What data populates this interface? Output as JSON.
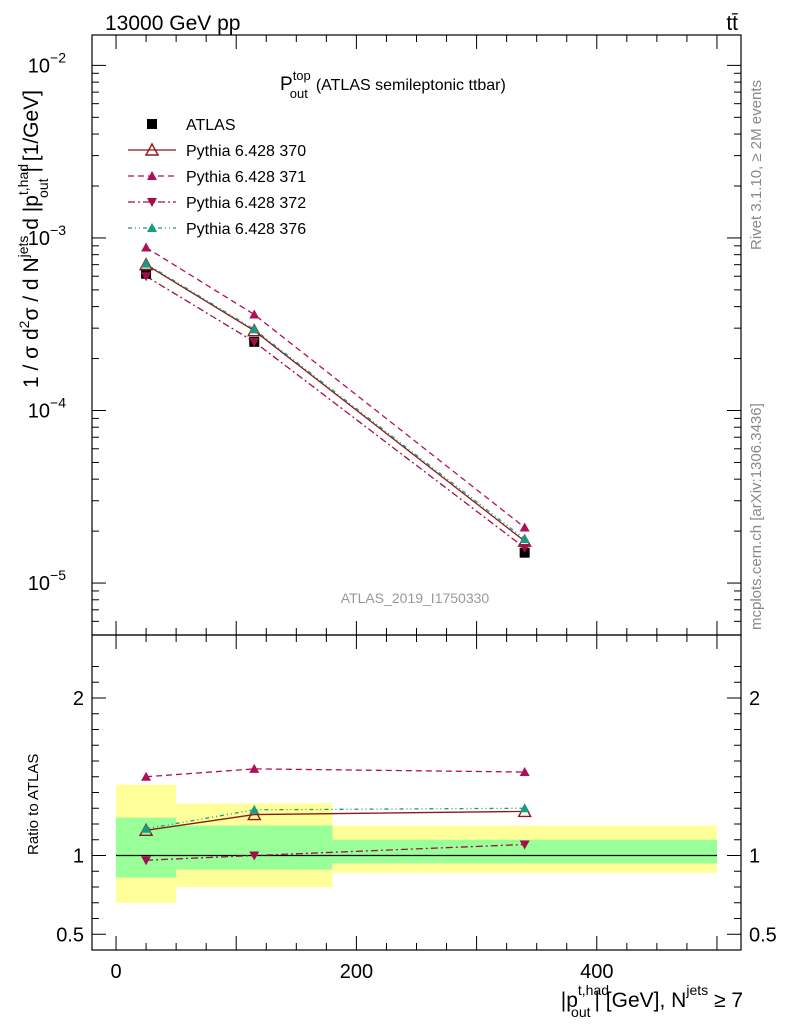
{
  "header": {
    "energy_label": "13000 GeV pp",
    "process_label": "tt̄"
  },
  "sidebar": {
    "rivet_label": "Rivet 3.1.10, ≥ 2M events",
    "mcplots_label": "mcplots.cern.ch [arXiv:1306.3436]"
  },
  "chart_data": [
    {
      "type": "line",
      "title_main": "P",
      "title_sup": "top",
      "title_sub": "out",
      "title_rest": "(ATLAS semileptonic ttbar)",
      "analysis_label": "ATLAS_2019_I1750330",
      "ylabel": "1 / σ d²σ / d N^jets d |p_out^t,had| [1/GeV]",
      "ylabel_parts": {
        "a": "1 / σ d",
        "b": "σ / d N",
        "c": "jets",
        "d": " d |p",
        "e": "t,had",
        "f": "out",
        "g": "| [1/GeV]",
        "two": "2"
      },
      "yscale": "log",
      "ylim": [
        5e-06,
        0.015
      ],
      "xlim": [
        -20,
        520
      ],
      "yticks": [
        {
          "value": 1e-05,
          "base": "10",
          "exp": "−5"
        },
        {
          "value": 0.0001,
          "base": "10",
          "exp": "−4"
        },
        {
          "value": 0.001,
          "base": "10",
          "exp": "−3"
        },
        {
          "value": 0.01,
          "base": "10",
          "exp": "−2"
        }
      ],
      "legend_position": "top-left",
      "series": [
        {
          "name": "ATLAS",
          "color": "#000000",
          "marker": "square-filled",
          "dash": "none",
          "x": [
            25,
            115,
            340
          ],
          "y": [
            0.00062,
            0.00025,
            1.5e-05
          ]
        },
        {
          "name": "Pythia 6.428 370",
          "color": "#8b1a1a",
          "marker": "triangle-open",
          "dash": "solid",
          "x": [
            25,
            115,
            340
          ],
          "y": [
            0.0007,
            0.00029,
            1.75e-05
          ]
        },
        {
          "name": "Pythia 6.428 371",
          "color": "#b0105a",
          "marker": "triangle-filled",
          "dash": "dashed",
          "x": [
            25,
            115,
            340
          ],
          "y": [
            0.00088,
            0.00036,
            2.1e-05
          ]
        },
        {
          "name": "Pythia 6.428 372",
          "color": "#a0104a",
          "marker": "triangle-down-filled",
          "dash": "dashdot",
          "x": [
            25,
            115,
            340
          ],
          "y": [
            0.0006,
            0.00025,
            1.6e-05
          ]
        },
        {
          "name": "Pythia 6.428 376",
          "color": "#1a9a80",
          "marker": "triangle-filled",
          "dash": "dashdotdot",
          "x": [
            25,
            115,
            340
          ],
          "y": [
            0.00071,
            0.000295,
            1.8e-05
          ]
        }
      ]
    },
    {
      "type": "line",
      "ylabel": "Ratio to ATLAS",
      "ylim": [
        0.4,
        2.4
      ],
      "xlim": [
        -20,
        520
      ],
      "yticks": [
        {
          "value": 0.5,
          "label": "0.5"
        },
        {
          "value": 1,
          "label": "1"
        },
        {
          "value": 2,
          "label": "2"
        }
      ],
      "xticks": [
        {
          "value": 0,
          "label": "0"
        },
        {
          "value": 200,
          "label": "200"
        },
        {
          "value": 400,
          "label": "400"
        }
      ],
      "xlabel_parts": {
        "a": "|p",
        "b": "t,had",
        "c": "out",
        "d": "| [GeV], N",
        "e": "jets",
        "f": " ≥ 7"
      },
      "bands": [
        {
          "x0": 0,
          "x1": 50,
          "yellow": [
            0.7,
            1.45
          ],
          "green": [
            0.86,
            1.24
          ]
        },
        {
          "x0": 50,
          "x1": 180,
          "yellow": [
            0.8,
            1.33
          ],
          "green": [
            0.91,
            1.19
          ]
        },
        {
          "x0": 180,
          "x1": 500,
          "yellow": [
            0.89,
            1.19
          ],
          "green": [
            0.95,
            1.1
          ]
        }
      ],
      "series": [
        {
          "name": "Pythia 6.428 370",
          "x": [
            25,
            115,
            340
          ],
          "y": [
            1.16,
            1.26,
            1.28
          ]
        },
        {
          "name": "Pythia 6.428 371",
          "x": [
            25,
            115,
            340
          ],
          "y": [
            1.5,
            1.55,
            1.53
          ]
        },
        {
          "name": "Pythia 6.428 372",
          "x": [
            25,
            115,
            340
          ],
          "y": [
            0.97,
            1.0,
            1.07
          ]
        },
        {
          "name": "Pythia 6.428 376",
          "x": [
            25,
            115,
            340
          ],
          "y": [
            1.17,
            1.29,
            1.3
          ]
        }
      ]
    }
  ]
}
